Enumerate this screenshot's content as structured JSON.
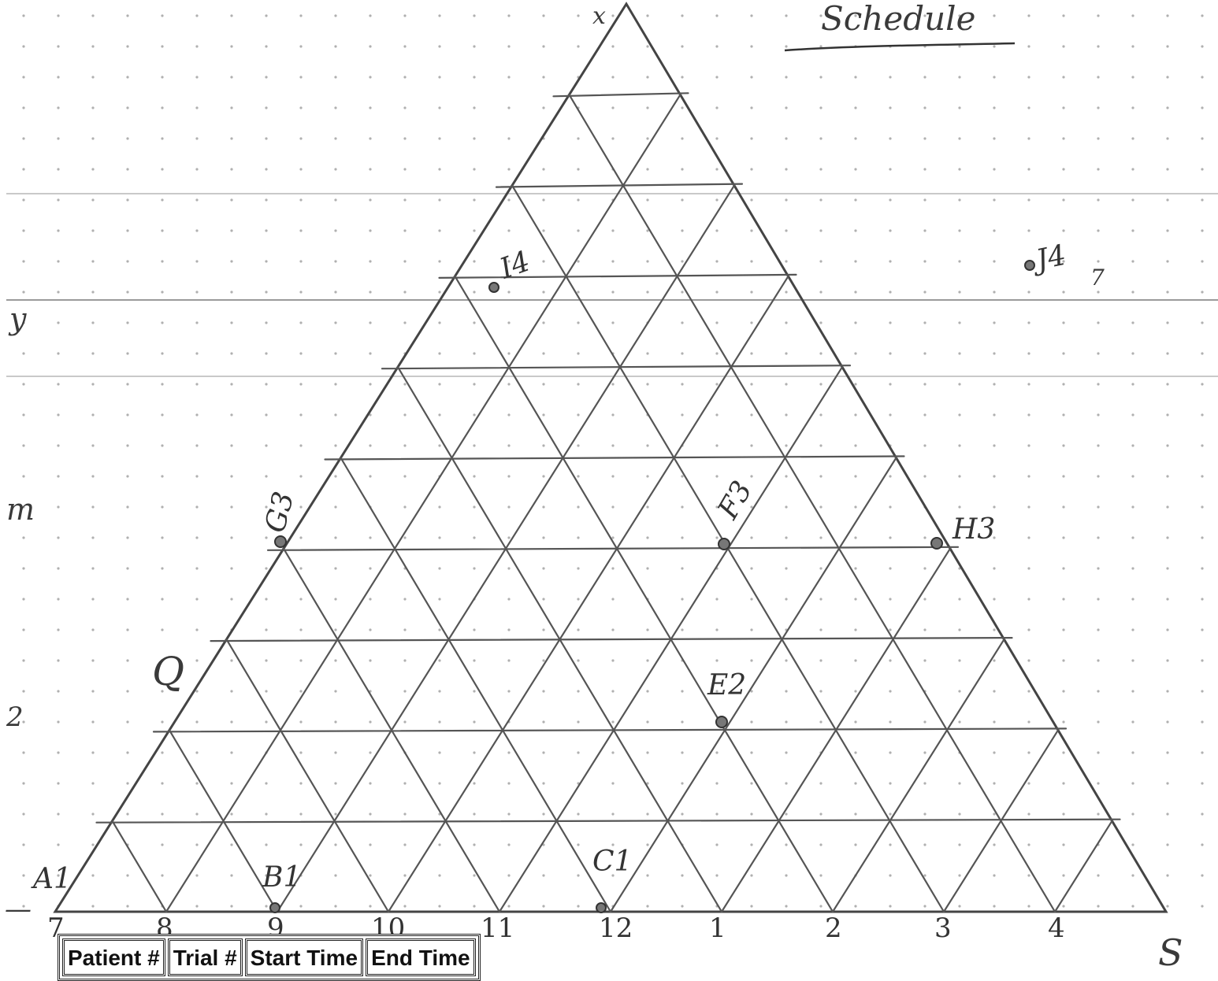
{
  "title": "Schedule",
  "left_margin_marks": [
    "y",
    "m",
    "2",
    "—"
  ],
  "bottom_axis_labels": [
    "7",
    "8",
    "9",
    "10",
    "11",
    "12",
    "1",
    "2",
    "3",
    "4"
  ],
  "corner_label": "S",
  "apex_mark": "x",
  "side_mark": "Q",
  "points": {
    "A1": "A1",
    "B1": "B1",
    "C1": "C1",
    "E2": "E2",
    "F3": "F3",
    "G3": "G3",
    "H3": "H3",
    "I4": "I4",
    "J4": "J4"
  },
  "stray_mark": "7",
  "table_headers": [
    "Patient #",
    "Trial #",
    "Start Time",
    "End Time"
  ],
  "colors": {
    "ink": "#4a4a4a",
    "dot": "#b5b5b5",
    "rule": "#cfcfcf"
  }
}
